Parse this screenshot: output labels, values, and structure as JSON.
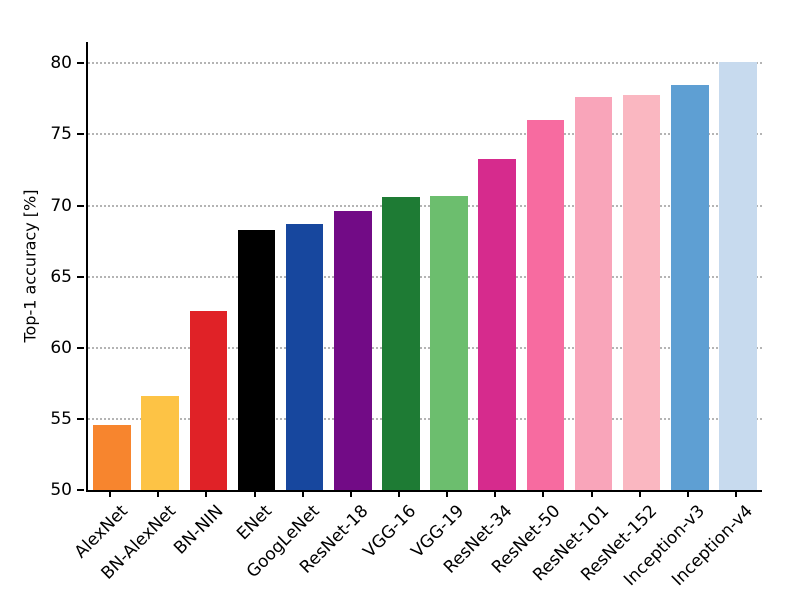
{
  "chart_data": {
    "type": "bar",
    "title": "",
    "xlabel": "",
    "ylabel": "Top-1 accuracy [%]",
    "ylim": [
      50,
      81.5
    ],
    "yticks": [
      50,
      55,
      60,
      65,
      70,
      75,
      80
    ],
    "grid": "horizontal-dotted",
    "legend": "none",
    "categories": [
      "AlexNet",
      "BN-AlexNet",
      "BN-NIN",
      "ENet",
      "GoogLeNet",
      "ResNet-18",
      "VGG-16",
      "VGG-19",
      "ResNet-34",
      "ResNet-50",
      "ResNet-101",
      "ResNet-152",
      "Inception-v3",
      "Inception-v4"
    ],
    "values": [
      54.6,
      56.6,
      62.6,
      68.3,
      68.7,
      69.6,
      70.6,
      70.7,
      73.3,
      76.0,
      77.6,
      77.8,
      78.5,
      80.1
    ],
    "colors": [
      "#f7852e",
      "#fdc345",
      "#e02227",
      "#000000",
      "#17479e",
      "#720b86",
      "#1e7b34",
      "#6cbe6e",
      "#d62b8d",
      "#f76ba0",
      "#f9a5ba",
      "#fab7c1",
      "#5e9fd3",
      "#c7daee"
    ],
    "grid_color": "#b4b4b4",
    "axis_color": "#000000"
  }
}
